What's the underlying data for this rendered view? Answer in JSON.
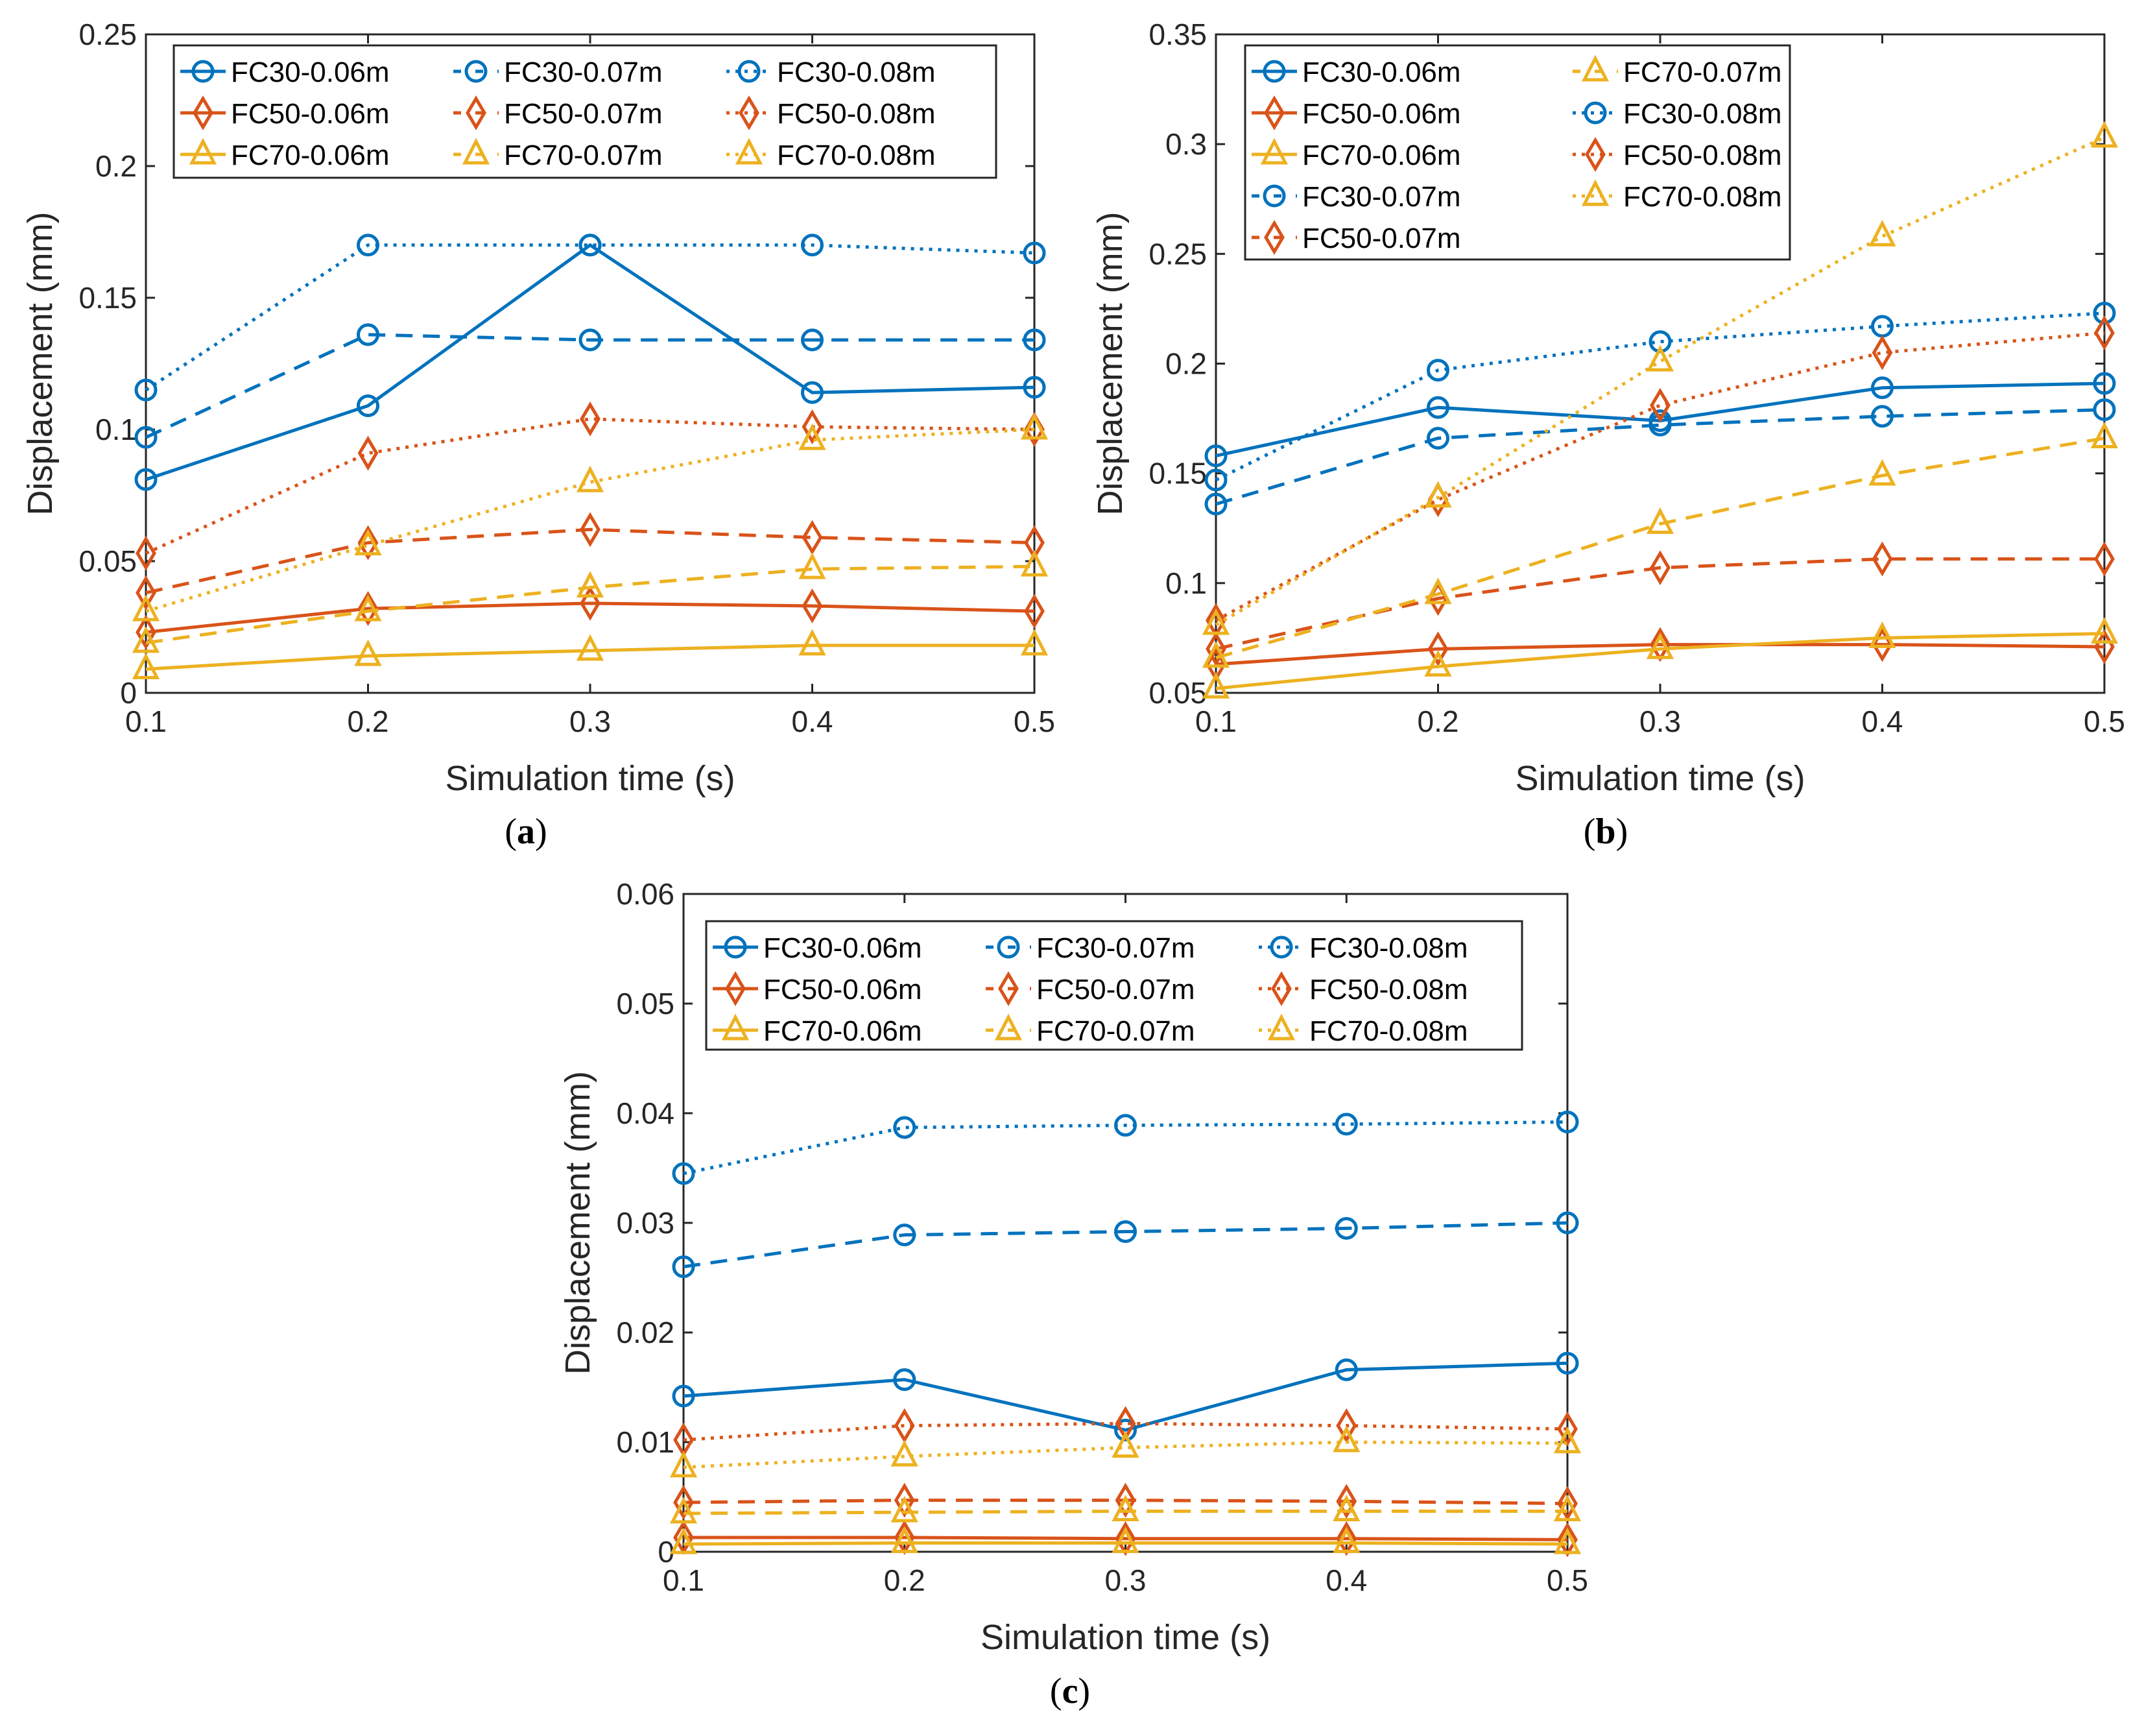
{
  "colors": {
    "FC30": "#0072BD",
    "FC50": "#D95319",
    "FC70": "#EDB120"
  },
  "chart_data": [
    {
      "type": "line",
      "caption_prefix": "(",
      "caption_letter": "a",
      "caption_suffix": ")",
      "xlabel": "Simulation time (s)",
      "ylabel": "Displacement (mm)",
      "x": [
        0.1,
        0.2,
        0.3,
        0.4,
        0.5
      ],
      "xticks": [
        "0.1",
        "0.2",
        "0.3",
        "0.4",
        "0.5"
      ],
      "xlim": [
        0.1,
        0.5
      ],
      "ylim": [
        0,
        0.25
      ],
      "yticks": [
        "0",
        "0.05",
        "0.1",
        "0.15",
        "0.2",
        "0.25"
      ],
      "legend": {
        "placement": "top-left",
        "rows": 3
      },
      "series": [
        {
          "name": "FC30-0.06m",
          "values": [
            0.081,
            0.109,
            0.17,
            0.114,
            0.116
          ]
        },
        {
          "name": "FC50-0.06m",
          "values": [
            0.023,
            0.032,
            0.034,
            0.033,
            0.031
          ]
        },
        {
          "name": "FC70-0.06m",
          "values": [
            0.009,
            0.014,
            0.016,
            0.018,
            0.018
          ]
        },
        {
          "name": "FC30-0.07m",
          "values": [
            0.097,
            0.136,
            0.134,
            0.134,
            0.134
          ]
        },
        {
          "name": "FC50-0.07m",
          "values": [
            0.038,
            0.057,
            0.062,
            0.059,
            0.057
          ]
        },
        {
          "name": "FC70-0.07m",
          "values": [
            0.019,
            0.031,
            0.04,
            0.047,
            0.048
          ]
        },
        {
          "name": "FC30-0.08m",
          "values": [
            0.115,
            0.17,
            0.17,
            0.17,
            0.167
          ]
        },
        {
          "name": "FC50-0.08m",
          "values": [
            0.053,
            0.091,
            0.104,
            0.101,
            0.1
          ]
        },
        {
          "name": "FC70-0.08m",
          "values": [
            0.031,
            0.056,
            0.08,
            0.096,
            0.1
          ]
        }
      ]
    },
    {
      "type": "line",
      "caption_prefix": "(",
      "caption_letter": "b",
      "caption_suffix": ")",
      "xlabel": "Simulation time (s)",
      "ylabel": "Displacement (mm)",
      "x": [
        0.1,
        0.2,
        0.3,
        0.4,
        0.5
      ],
      "xticks": [
        "0.1",
        "0.2",
        "0.3",
        "0.4",
        "0.5"
      ],
      "xlim": [
        0.1,
        0.5
      ],
      "ylim": [
        0.05,
        0.35
      ],
      "yticks": [
        "0.05",
        "0.1",
        "0.15",
        "0.2",
        "0.25",
        "0.3",
        "0.35"
      ],
      "legend": {
        "placement": "top-left",
        "rows": 5
      },
      "series": [
        {
          "name": "FC30-0.06m",
          "values": [
            0.158,
            0.18,
            0.174,
            0.189,
            0.191
          ]
        },
        {
          "name": "FC50-0.06m",
          "values": [
            0.063,
            0.07,
            0.072,
            0.072,
            0.071
          ]
        },
        {
          "name": "FC70-0.06m",
          "values": [
            0.052,
            0.062,
            0.07,
            0.075,
            0.077
          ]
        },
        {
          "name": "FC30-0.07m",
          "values": [
            0.136,
            0.166,
            0.172,
            0.176,
            0.179
          ]
        },
        {
          "name": "FC50-0.07m",
          "values": [
            0.07,
            0.093,
            0.107,
            0.111,
            0.111
          ]
        },
        {
          "name": "FC70-0.07m",
          "values": [
            0.066,
            0.095,
            0.127,
            0.149,
            0.166
          ]
        },
        {
          "name": "FC30-0.08m",
          "values": [
            0.147,
            0.197,
            0.21,
            0.217,
            0.223
          ]
        },
        {
          "name": "FC50-0.08m",
          "values": [
            0.083,
            0.138,
            0.181,
            0.205,
            0.214
          ]
        },
        {
          "name": "FC70-0.08m",
          "values": [
            0.081,
            0.139,
            0.201,
            0.258,
            0.303
          ]
        }
      ]
    },
    {
      "type": "line",
      "caption_prefix": "(",
      "caption_letter": "c",
      "caption_suffix": ")",
      "xlabel": "Simulation time (s)",
      "ylabel": "Displacement (mm)",
      "x": [
        0.1,
        0.2,
        0.3,
        0.4,
        0.5
      ],
      "xticks": [
        "0.1",
        "0.2",
        "0.3",
        "0.4",
        "0.5"
      ],
      "xlim": [
        0.1,
        0.5
      ],
      "ylim": [
        0,
        0.06
      ],
      "yticks": [
        "0",
        "0.01",
        "0.02",
        "0.03",
        "0.04",
        "0.05",
        "0.06"
      ],
      "legend": {
        "placement": "top-left",
        "rows": 3
      },
      "series": [
        {
          "name": "FC30-0.06m",
          "values": [
            0.0142,
            0.0157,
            0.0111,
            0.0166,
            0.0172
          ]
        },
        {
          "name": "FC50-0.06m",
          "values": [
            0.0013,
            0.0013,
            0.0012,
            0.0012,
            0.0011
          ]
        },
        {
          "name": "FC70-0.06m",
          "values": [
            0.0007,
            0.0008,
            0.0008,
            0.0008,
            0.0007
          ]
        },
        {
          "name": "FC30-0.07m",
          "values": [
            0.026,
            0.0289,
            0.0292,
            0.0295,
            0.03
          ]
        },
        {
          "name": "FC50-0.07m",
          "values": [
            0.0045,
            0.0047,
            0.0047,
            0.0046,
            0.0044
          ]
        },
        {
          "name": "FC70-0.07m",
          "values": [
            0.0035,
            0.0036,
            0.0037,
            0.0037,
            0.0037
          ]
        },
        {
          "name": "FC30-0.08m",
          "values": [
            0.0345,
            0.0387,
            0.0389,
            0.039,
            0.0392
          ]
        },
        {
          "name": "FC50-0.08m",
          "values": [
            0.0102,
            0.0115,
            0.0117,
            0.0115,
            0.0112
          ]
        },
        {
          "name": "FC70-0.08m",
          "values": [
            0.0077,
            0.0087,
            0.0095,
            0.01,
            0.0099
          ]
        }
      ]
    }
  ]
}
